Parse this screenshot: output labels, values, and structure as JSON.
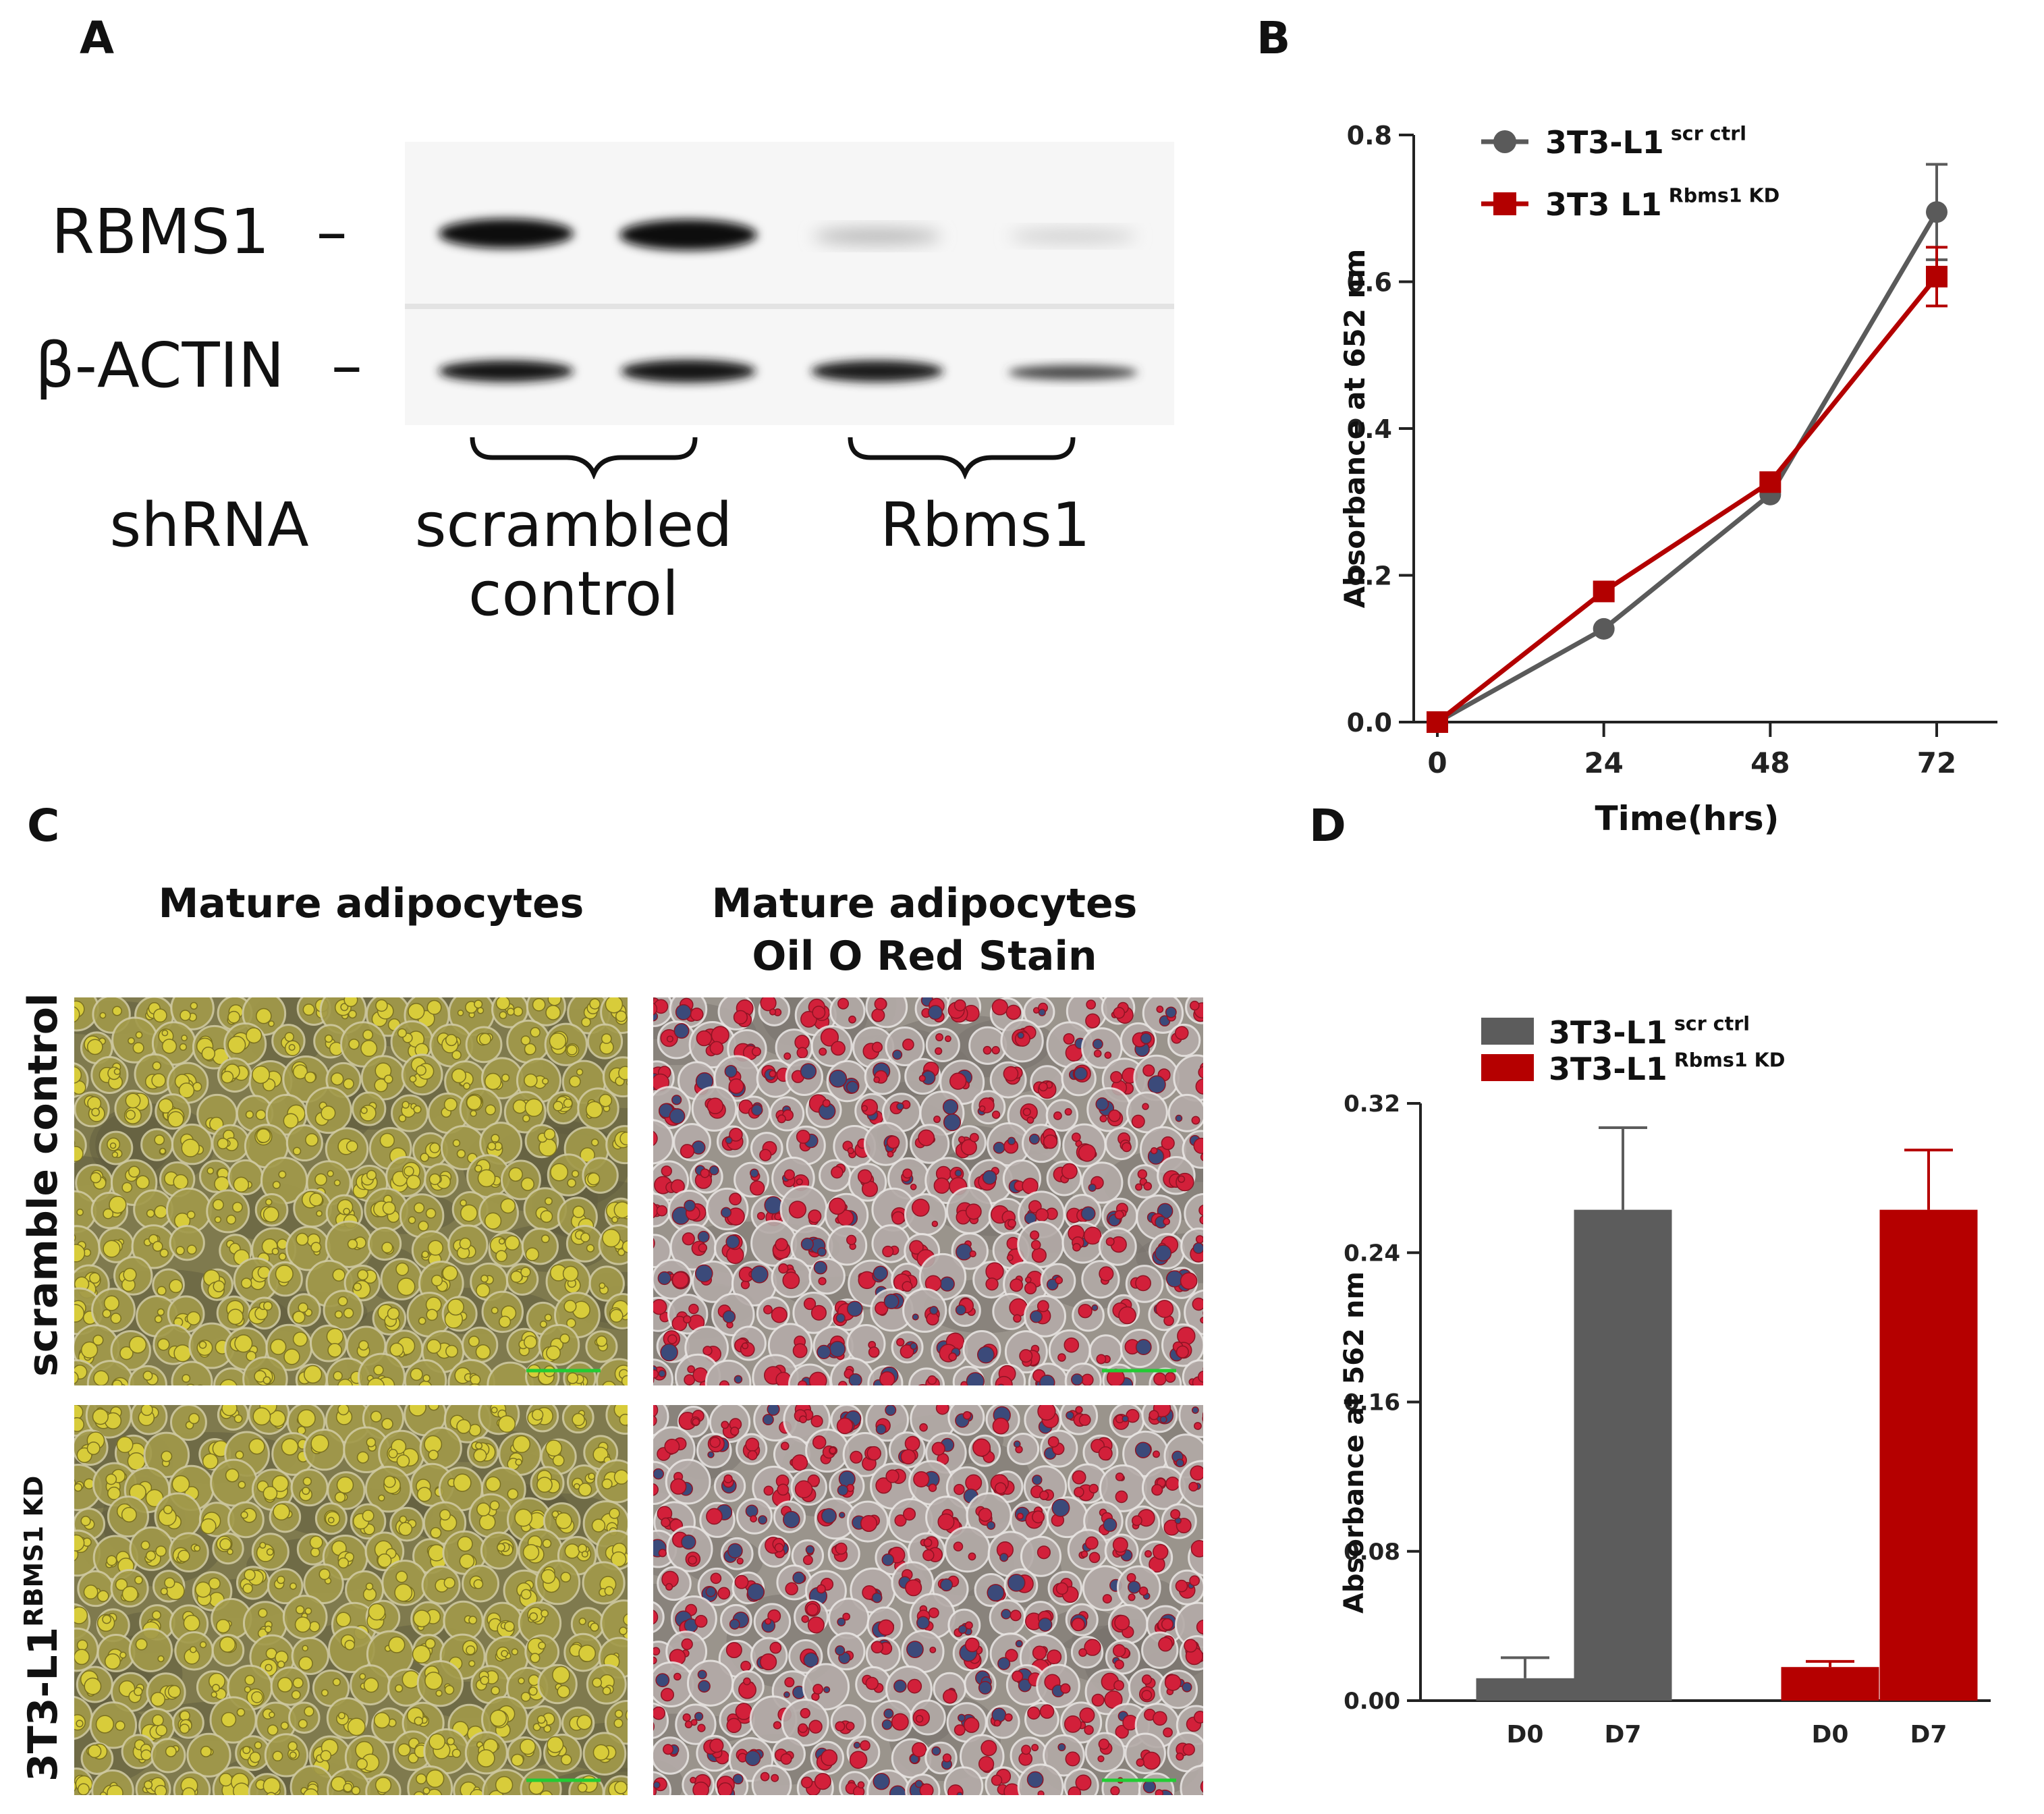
{
  "panels": {
    "a": {
      "letter": "A",
      "bands": [
        {
          "label": "RBMS1",
          "dash": "–"
        },
        {
          "label": "β-ACTIN",
          "dash": "–"
        }
      ],
      "row_label": "shRNA",
      "groups": [
        {
          "line1": "scrambled",
          "line2": "control"
        },
        {
          "line1": "Rbms1",
          "line2": ""
        }
      ]
    },
    "b": {
      "letter": "B"
    },
    "c": {
      "letter": "C",
      "column_titles": [
        {
          "line1": "Mature adipocytes",
          "line2": ""
        },
        {
          "line1": "Mature adipocytes",
          "line2": "Oil O Red Stain"
        }
      ],
      "row_labels": [
        {
          "text": "scramble control",
          "sup": ""
        },
        {
          "text": "3T3-L1",
          "sup": "RBMS1 KD"
        }
      ]
    },
    "d": {
      "letter": "D"
    }
  },
  "chart_data": [
    {
      "panel": "B",
      "type": "line",
      "xlabel": "Time(hrs)",
      "ylabel": "Absorbance at 652 nm",
      "x": [
        0,
        24,
        48,
        72
      ],
      "x_ticks": [
        "0",
        "24",
        "48",
        "72"
      ],
      "ylim": [
        0,
        0.8
      ],
      "y_ticks": [
        "0.0",
        "0.2",
        "0.4",
        "0.6",
        "0.8"
      ],
      "legend_position": "top-left",
      "grid": false,
      "series": [
        {
          "name": "3T3-L1",
          "name_sup": "scr ctrl",
          "marker": "circle",
          "color": "#5a5a5a",
          "values": [
            0.0,
            0.127,
            0.31,
            0.695
          ],
          "error": [
            0,
            0,
            0,
            0.065
          ]
        },
        {
          "name": "3T3 L1",
          "name_sup": "Rbms1 KD",
          "marker": "square",
          "color": "#b30000",
          "values": [
            0.0,
            0.178,
            0.327,
            0.607
          ],
          "error": [
            0,
            0,
            0,
            0.04
          ]
        }
      ]
    },
    {
      "panel": "D",
      "type": "bar",
      "ylabel": "Absorbance at 562 nm",
      "ylim": [
        0,
        0.32
      ],
      "y_ticks": [
        "0.00",
        "0.08",
        "0.16",
        "0.24",
        "0.32"
      ],
      "legend_position": "top-left",
      "grid": false,
      "series": [
        {
          "name": "3T3-L1",
          "name_sup": "scr ctrl",
          "color": "#5c5c5c",
          "categories": [
            "D0",
            "D7"
          ],
          "values": [
            0.012,
            0.263
          ],
          "error": [
            0.011,
            0.044
          ]
        },
        {
          "name": "3T3-L1",
          "name_sup": "Rbms1 KD",
          "color": "#b50000",
          "categories": [
            "D0",
            "D7"
          ],
          "values": [
            0.018,
            0.263
          ],
          "error": [
            0.003,
            0.032
          ]
        }
      ]
    }
  ]
}
